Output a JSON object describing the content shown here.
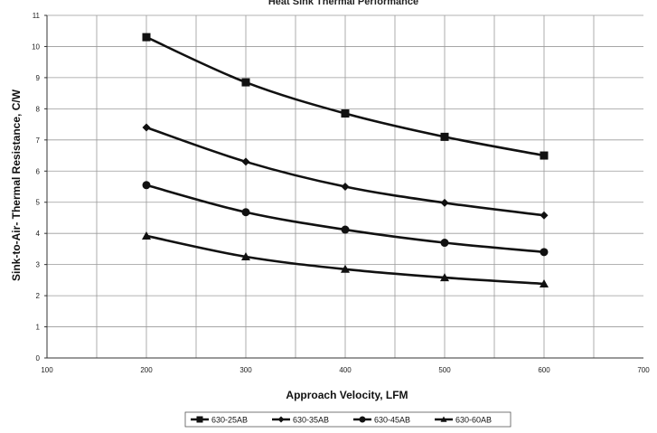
{
  "chart_data": {
    "type": "line",
    "title": "Heat Sink Thermal Performance",
    "xlabel": "Approach Velocity, LFM",
    "ylabel": "Sink-to-Air- Thermal Resistance, C/W",
    "xlim": [
      100,
      700
    ],
    "ylim": [
      0,
      11
    ],
    "x_ticks": [
      100,
      200,
      300,
      400,
      500,
      600,
      700
    ],
    "y_ticks": [
      0,
      1,
      2,
      3,
      4,
      5,
      6,
      7,
      8,
      9,
      10,
      11
    ],
    "grid": true,
    "legend_position": "bottom",
    "x": [
      200,
      300,
      400,
      500,
      600
    ],
    "series": [
      {
        "name": "630-25AB",
        "marker": "square",
        "values": [
          10.3,
          8.85,
          7.85,
          7.1,
          6.5
        ]
      },
      {
        "name": "630-35AB",
        "marker": "diamond",
        "values": [
          7.4,
          6.3,
          5.5,
          4.98,
          4.58
        ]
      },
      {
        "name": "630-45AB",
        "marker": "circle",
        "values": [
          5.55,
          4.68,
          4.12,
          3.7,
          3.4
        ]
      },
      {
        "name": "630-60AB",
        "marker": "triangle",
        "values": [
          3.92,
          3.25,
          2.85,
          2.58,
          2.38
        ]
      }
    ],
    "colors": {
      "line": "#111111",
      "grid": "#9a9a9a",
      "axis": "#333333"
    }
  }
}
